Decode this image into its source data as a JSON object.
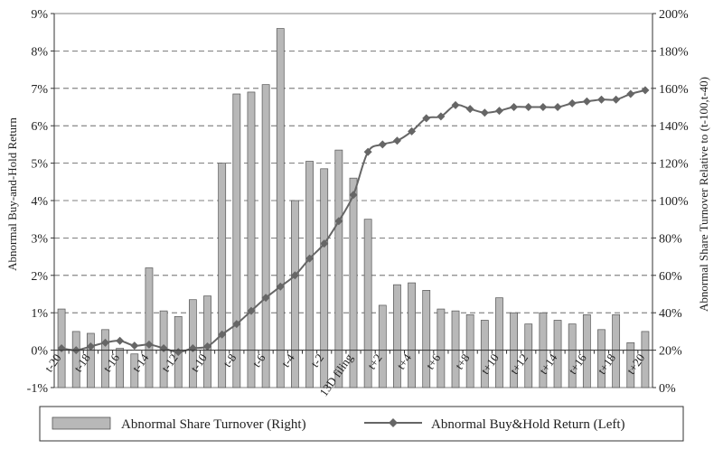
{
  "chart_data": {
    "type": "bar+line",
    "left_axis": {
      "label": "Abnormal Buy-and-Hold Return",
      "min": -1,
      "max": 9,
      "step": 1,
      "tick_labels": [
        "-1%",
        "0%",
        "1%",
        "2%",
        "3%",
        "4%",
        "5%",
        "6%",
        "7%",
        "8%",
        "9%"
      ]
    },
    "right_axis": {
      "label": "Abnormal Share Turnover Relative to (t-100,t-40)",
      "min": 0,
      "max": 200,
      "step": 20,
      "tick_labels": [
        "0%",
        "20%",
        "40%",
        "60%",
        "80%",
        "100%",
        "120%",
        "140%",
        "160%",
        "180%",
        "200%"
      ]
    },
    "categories": [
      "t-20",
      "t-19",
      "t-18",
      "t-17",
      "t-16",
      "t-15",
      "t-14",
      "t-13",
      "t-12",
      "t-11",
      "t-10",
      "t-9",
      "t-8",
      "t-7",
      "t-6",
      "t-5",
      "t-4",
      "t-3",
      "t-2",
      "t-1",
      "13D filing",
      "t+1",
      "t+2",
      "t+3",
      "t+4",
      "t+5",
      "t+6",
      "t+7",
      "t+8",
      "t+9",
      "t+10",
      "t+11",
      "t+12",
      "t+13",
      "t+14",
      "t+15",
      "t+16",
      "t+17",
      "t+18",
      "t+19",
      "t+20"
    ],
    "x_tick_labels": [
      "t-20",
      "t-18",
      "t-16",
      "t-14",
      "t-12",
      "t-10",
      "t-8",
      "t-6",
      "t-4",
      "t-2",
      "13D filing",
      "t+2",
      "t+4",
      "t+6",
      "t+8",
      "t+10",
      "t+12",
      "t+14",
      "t+16",
      "t+18",
      "t+20"
    ],
    "series": [
      {
        "name": "Abnormal Share Turnover (Right)",
        "type": "bar",
        "axis": "right",
        "color": "#b8b8b8",
        "values": [
          42,
          30,
          29,
          31,
          21,
          18,
          64,
          41,
          38,
          47,
          49,
          120,
          157,
          158,
          162,
          192,
          100,
          121,
          117,
          127,
          112,
          90,
          44,
          55,
          56,
          52,
          42,
          41,
          39,
          36,
          48,
          40,
          34,
          40,
          36,
          34,
          39,
          31,
          39,
          24,
          30
        ]
      },
      {
        "name": "Abnormal Buy&Hold Return (Left)",
        "type": "line",
        "axis": "left",
        "color": "#666666",
        "marker": "diamond",
        "values": [
          0.05,
          0.0,
          0.1,
          0.2,
          0.25,
          0.12,
          0.15,
          0.05,
          -0.05,
          0.05,
          0.1,
          0.42,
          0.7,
          1.05,
          1.4,
          1.7,
          2.0,
          2.45,
          2.85,
          3.45,
          4.15,
          5.3,
          5.5,
          5.6,
          5.85,
          6.2,
          6.25,
          6.55,
          6.45,
          6.35,
          6.4,
          6.5,
          6.5,
          6.5,
          6.5,
          6.6,
          6.65,
          6.7,
          6.7,
          6.85,
          6.95
        ]
      }
    ],
    "grid": "horizontal dashed",
    "legend_position": "bottom"
  },
  "legend": {
    "bar_label": "Abnormal Share Turnover (Right)",
    "line_label": "Abnormal Buy&Hold Return (Left)"
  }
}
